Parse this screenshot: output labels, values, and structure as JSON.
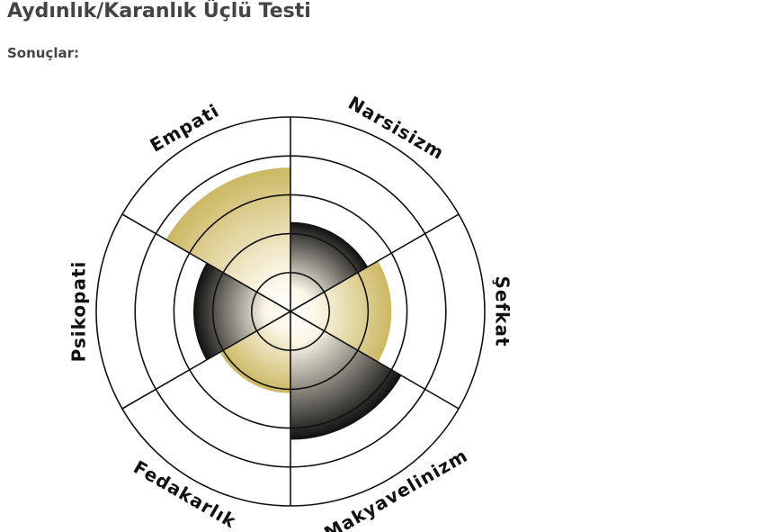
{
  "header": {
    "title": "Aydınlık/Karanlık Üçlü Testi",
    "subtitle": "Sonuçlar:"
  },
  "chart_data": {
    "type": "polar-area",
    "categories": [
      "Narsisizm",
      "Şefkat",
      "Makyavelinizm",
      "Fedakarlık",
      "Psikopati",
      "Empati"
    ],
    "values": [
      2.3,
      2.6,
      3.3,
      2.1,
      2.5,
      3.7
    ],
    "colors": [
      "#000000",
      "#c8b45a",
      "#000000",
      "#c8b45a",
      "#000000",
      "#c8b45a"
    ],
    "rlim": [
      0,
      5
    ],
    "rticks": [
      1,
      2,
      3,
      4,
      5
    ]
  }
}
